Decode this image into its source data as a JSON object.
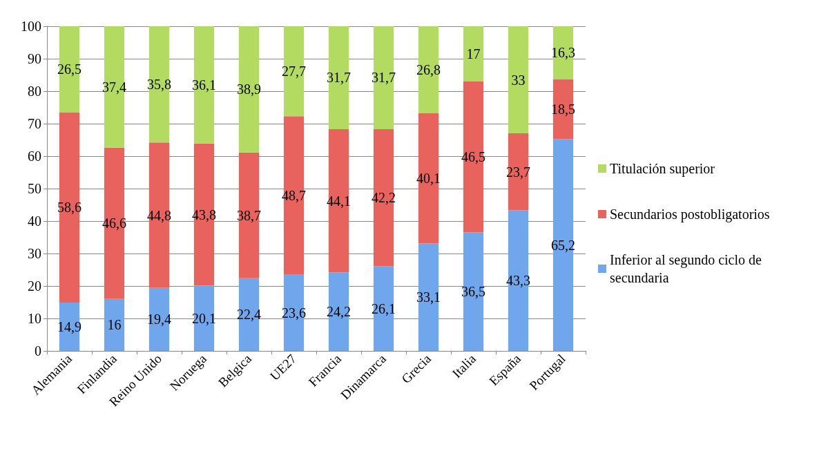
{
  "chart_data": {
    "type": "bar",
    "stacked": true,
    "categories": [
      "Alemania",
      "Finlandia",
      "Reino Unido",
      "Noruega",
      "Belgica",
      "UE27",
      "Francia",
      "Dinamarca",
      "Grecia",
      "Italia",
      "España",
      "Portugal"
    ],
    "series": [
      {
        "name": "Inferior al segundo ciclo de secundaria",
        "color": "#6fa6ec",
        "values": [
          14.9,
          16,
          19.4,
          20.1,
          22.4,
          23.6,
          24.2,
          26.1,
          33.1,
          36.5,
          43.3,
          65.2
        ],
        "value_labels": [
          "14,9",
          "16",
          "19,4",
          "20,1",
          "22,4",
          "23,6",
          "24,2",
          "26,1",
          "33,1",
          "36,5",
          "43,3",
          "65,2"
        ]
      },
      {
        "name": "Secundarios postobligatorios",
        "color": "#e8635e",
        "values": [
          58.6,
          46.6,
          44.8,
          43.8,
          38.7,
          48.7,
          44.1,
          42.2,
          40.1,
          46.5,
          23.7,
          18.5
        ],
        "value_labels": [
          "58,6",
          "46,6",
          "44,8",
          "43,8",
          "38,7",
          "48,7",
          "44,1",
          "42,2",
          "40,1",
          "46,5",
          "23,7",
          "18,5"
        ]
      },
      {
        "name": "Titulación superior",
        "color": "#b3db62",
        "values": [
          26.5,
          37.4,
          35.8,
          36.1,
          38.9,
          27.7,
          31.7,
          31.7,
          26.8,
          17,
          33,
          16.3
        ],
        "value_labels": [
          "26,5",
          "37,4",
          "35,8",
          "36,1",
          "38,9",
          "27,7",
          "31,7",
          "31,7",
          "26,8",
          "17",
          "33",
          "16,3"
        ]
      }
    ],
    "ylim": [
      0,
      100
    ],
    "yticks": [
      0,
      10,
      20,
      30,
      40,
      50,
      60,
      70,
      80,
      90,
      100
    ],
    "grid": "y",
    "legend": "right"
  }
}
